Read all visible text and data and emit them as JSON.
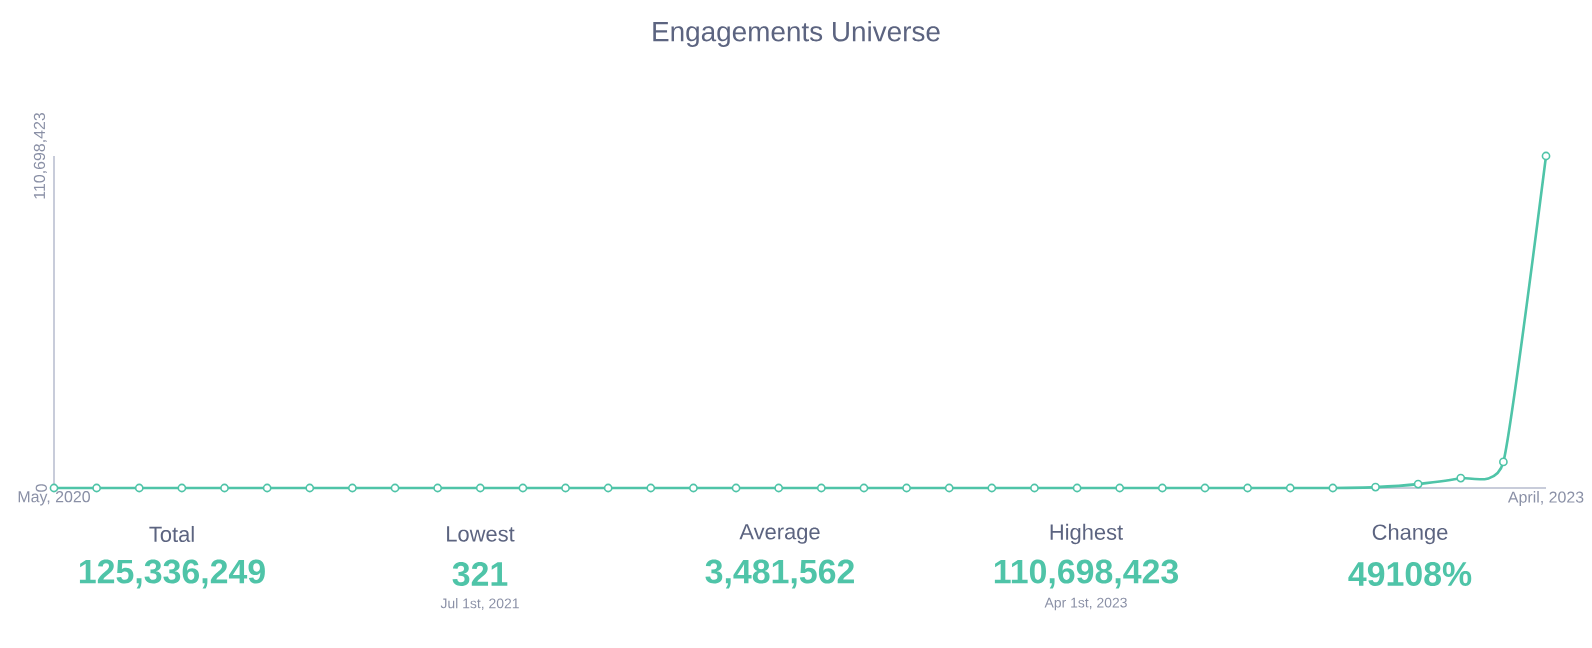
{
  "chart_data": {
    "type": "line",
    "title": "Engagements Universe",
    "x": [
      "2020-05",
      "2020-06",
      "2020-07",
      "2020-08",
      "2020-09",
      "2020-10",
      "2020-11",
      "2020-12",
      "2021-01",
      "2021-02",
      "2021-03",
      "2021-04",
      "2021-05",
      "2021-06",
      "2021-07",
      "2021-08",
      "2021-09",
      "2021-10",
      "2021-11",
      "2021-12",
      "2022-01",
      "2022-02",
      "2022-03",
      "2022-04",
      "2022-05",
      "2022-06",
      "2022-07",
      "2022-08",
      "2022-09",
      "2022-10",
      "2022-11",
      "2022-12",
      "2023-01",
      "2023-02",
      "2023-03",
      "2023-04"
    ],
    "series": [
      {
        "color": "#4fc4a8",
        "values": [
          0,
          0,
          0,
          0,
          0,
          0,
          0,
          0,
          0,
          0,
          0,
          0,
          0,
          0,
          0,
          0,
          0,
          0,
          0,
          0,
          0,
          0,
          0,
          0,
          0,
          0,
          0,
          0,
          0,
          0,
          0,
          300000,
          1300000,
          3300000,
          8700000,
          110698423
        ]
      }
    ],
    "xlim": [
      "2020-05",
      "2023-04"
    ],
    "xticks": [
      {
        "value": "2020-05",
        "label": "May, 2020"
      },
      {
        "value": "2023-04",
        "label": "April, 2023"
      }
    ],
    "ylim": [
      0,
      110698423
    ],
    "yticks": [
      {
        "value": 0,
        "label": "0"
      },
      {
        "value": 110698423,
        "label": "110,698,423"
      }
    ],
    "marker": "circle",
    "line_style": "solid",
    "annotations": [
      "Total",
      "125,336,249",
      "Lowest",
      "321",
      "Jul 1st, 2021",
      "Average",
      "3,481,562",
      "Highest",
      "110,698,423",
      "Apr 1st, 2023",
      "Change",
      "49108%"
    ]
  }
}
